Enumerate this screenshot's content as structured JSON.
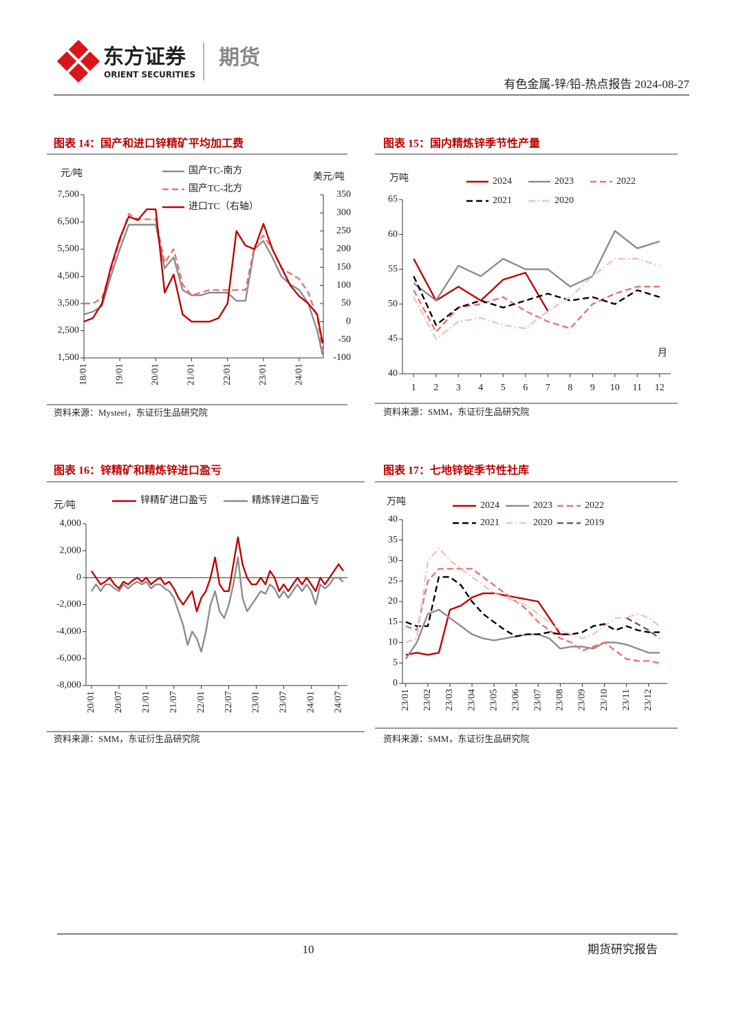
{
  "header": {
    "brand_cn": "东方证券",
    "brand_en": "ORIENT SECURITIES",
    "division": "期货",
    "report": "有色金属-锌/铅-热点报告 2024-08-27"
  },
  "footer": {
    "page": "10",
    "label": "期货研究报告"
  },
  "chart_data": [
    {
      "type": "line",
      "title": "图表 14：国产和进口锌精矿平均加工费",
      "source": "资料来源：Mysteel，东证衍生品研究院",
      "y_unit": "元/吨",
      "y2_unit": "美元/吨",
      "x": [
        2018.0,
        2018.25,
        2018.5,
        2018.75,
        2019.0,
        2019.25,
        2019.5,
        2019.75,
        2020.0,
        2020.25,
        2020.5,
        2020.75,
        2021.0,
        2021.25,
        2021.5,
        2021.75,
        2022.0,
        2022.25,
        2022.5,
        2022.75,
        2023.0,
        2023.25,
        2023.5,
        2023.75,
        2024.0,
        2024.25,
        2024.5,
        2024.65
      ],
      "xlim": [
        2018,
        2024.67
      ],
      "xticks": [
        {
          "value": 2018,
          "label": "18/01"
        },
        {
          "value": 2019,
          "label": "19/01"
        },
        {
          "value": 2020,
          "label": "20/01"
        },
        {
          "value": 2021,
          "label": "21/01"
        },
        {
          "value": 2022,
          "label": "22/01"
        },
        {
          "value": 2023,
          "label": "23/01"
        },
        {
          "value": 2024,
          "label": "24/01"
        }
      ],
      "ylim": [
        1500,
        7500
      ],
      "yticks": [
        {
          "value": 1500,
          "label": "1,500"
        },
        {
          "value": 2500,
          "label": "2,500"
        },
        {
          "value": 3500,
          "label": "3,500"
        },
        {
          "value": 4500,
          "label": "4,500"
        },
        {
          "value": 5500,
          "label": "5,500"
        },
        {
          "value": 6500,
          "label": "6,500"
        },
        {
          "value": 7500,
          "label": "7,500"
        }
      ],
      "y2lim": [
        -100,
        350
      ],
      "y2ticks": [
        -100,
        -50,
        0,
        50,
        100,
        150,
        200,
        250,
        300,
        350
      ],
      "series": [
        {
          "name": "国产TC-南方",
          "color": "#8c8c8c",
          "dash": "solid",
          "values": [
            3100,
            3200,
            3400,
            4500,
            5500,
            6400,
            6400,
            6400,
            6400,
            4800,
            5200,
            4000,
            3800,
            3800,
            3900,
            3900,
            3900,
            3600,
            3600,
            5500,
            5800,
            5200,
            4500,
            4200,
            4000,
            3500,
            2500,
            1600
          ]
        },
        {
          "name": "国产TC-北方",
          "color": "#f07070",
          "dash": "dashed",
          "values": [
            3500,
            3500,
            3700,
            4700,
            5800,
            6800,
            6600,
            6600,
            6600,
            5000,
            5500,
            4200,
            3800,
            3900,
            4000,
            4000,
            4000,
            4000,
            4000,
            5600,
            6000,
            5500,
            4800,
            4600,
            4400,
            3900,
            3000,
            1800
          ]
        },
        {
          "name": "进口TC（右轴）",
          "color": "#c00000",
          "dash": "solid",
          "axis": "y2",
          "values": [
            0,
            10,
            50,
            150,
            230,
            290,
            280,
            310,
            310,
            80,
            130,
            20,
            0,
            0,
            0,
            10,
            50,
            250,
            210,
            200,
            270,
            200,
            150,
            100,
            70,
            50,
            20,
            -60
          ]
        }
      ]
    },
    {
      "type": "line",
      "title": "图表 15：国内精炼锌季节性产量",
      "source": "资料来源：SMM，东证衍生品研究院",
      "y_unit": "万吨",
      "x_label": "月",
      "categories": [
        1,
        2,
        3,
        4,
        5,
        6,
        7,
        8,
        9,
        10,
        11,
        12
      ],
      "ylim": [
        40,
        65
      ],
      "yticks": [
        40,
        45,
        50,
        55,
        60,
        65
      ],
      "series": [
        {
          "name": "2024",
          "color": "#c00000",
          "dash": "solid",
          "values": [
            56.5,
            50.5,
            52.5,
            50.5,
            53.5,
            54.5,
            49,
            null,
            null,
            null,
            null,
            null
          ]
        },
        {
          "name": "2023",
          "color": "#8c8c8c",
          "dash": "solid",
          "values": [
            53,
            50.5,
            55.5,
            54,
            56.5,
            55,
            55,
            52.5,
            54,
            60.5,
            58,
            59
          ]
        },
        {
          "name": "2022",
          "color": "#f07070",
          "dash": "dashed",
          "values": [
            52,
            46,
            49.5,
            50,
            51,
            49,
            47.5,
            46.5,
            50,
            51.5,
            52.5,
            52.5
          ]
        },
        {
          "name": "2021",
          "color": "#000000",
          "dash": "dashed",
          "values": [
            54,
            47,
            49.5,
            50.5,
            49.5,
            50.5,
            51.5,
            50.5,
            51,
            50,
            52,
            51
          ]
        },
        {
          "name": "2020",
          "color": "#f5c0c0",
          "dash": "dashdot",
          "values": [
            51,
            45,
            47.5,
            48,
            47,
            46.5,
            49,
            51,
            54,
            56.5,
            56.5,
            55.5
          ]
        }
      ]
    },
    {
      "type": "line",
      "title": "图表 16：锌精矿和精炼锌进口盈亏",
      "source": "资料来源：SMM，东证衍生品研究院",
      "y_unit": "元/吨",
      "x": [
        2020.0,
        2020.083,
        2020.167,
        2020.25,
        2020.333,
        2020.417,
        2020.5,
        2020.583,
        2020.667,
        2020.75,
        2020.833,
        2020.917,
        2021.0,
        2021.083,
        2021.167,
        2021.25,
        2021.333,
        2021.417,
        2021.5,
        2021.583,
        2021.667,
        2021.75,
        2021.833,
        2021.917,
        2022.0,
        2022.083,
        2022.167,
        2022.25,
        2022.333,
        2022.417,
        2022.5,
        2022.583,
        2022.667,
        2022.75,
        2022.833,
        2022.917,
        2023.0,
        2023.083,
        2023.167,
        2023.25,
        2023.333,
        2023.417,
        2023.5,
        2023.583,
        2023.667,
        2023.75,
        2023.833,
        2023.917,
        2024.0,
        2024.083,
        2024.167,
        2024.25,
        2024.333,
        2024.417,
        2024.5,
        2024.583
      ],
      "xlim": [
        2019.9,
        2024.66
      ],
      "xticks": [
        {
          "value": 2020,
          "label": "20/01"
        },
        {
          "value": 2020.5,
          "label": "20/07"
        },
        {
          "value": 2021,
          "label": "21/01"
        },
        {
          "value": 2021.5,
          "label": "21/07"
        },
        {
          "value": 2022,
          "label": "22/01"
        },
        {
          "value": 2022.5,
          "label": "22/07"
        },
        {
          "value": 2023,
          "label": "23/01"
        },
        {
          "value": 2023.5,
          "label": "23/07"
        },
        {
          "value": 2024,
          "label": "24/01"
        },
        {
          "value": 2024.5,
          "label": "24/07"
        }
      ],
      "ylim": [
        -8000,
        4000
      ],
      "yticks": [
        {
          "value": -8000,
          "label": "-8,000"
        },
        {
          "value": -6000,
          "label": "-6,000"
        },
        {
          "value": -4000,
          "label": "-4,000"
        },
        {
          "value": -2000,
          "label": "-2,000"
        },
        0,
        {
          "value": 2000,
          "label": "2,000"
        },
        {
          "value": 4000,
          "label": "4,000"
        }
      ],
      "series": [
        {
          "name": "锌精矿进口盈亏",
          "color": "#c00000",
          "dash": "solid",
          "values": [
            500,
            0,
            -500,
            -300,
            0,
            -500,
            -800,
            -300,
            -500,
            -200,
            0,
            -300,
            0,
            -500,
            -200,
            0,
            -500,
            -300,
            -800,
            -1500,
            -2000,
            -1500,
            -1000,
            -2500,
            -1500,
            -1000,
            0,
            1500,
            -500,
            -1000,
            -1000,
            1000,
            3000,
            1000,
            0,
            -500,
            -500,
            0,
            -500,
            500,
            0,
            -1000,
            -500,
            -1000,
            -500,
            0,
            -500,
            0,
            -500,
            -1000,
            0,
            -500,
            0,
            500,
            1000,
            500
          ]
        },
        {
          "name": "精炼锌进口盈亏",
          "color": "#8c8c8c",
          "dash": "solid",
          "values": [
            -1000,
            -500,
            -1000,
            -500,
            -500,
            -800,
            -1000,
            -500,
            -800,
            -500,
            -300,
            -500,
            -300,
            -800,
            -500,
            -500,
            -800,
            -1000,
            -1500,
            -2500,
            -3500,
            -5000,
            -4000,
            -4500,
            -5500,
            -4000,
            -2000,
            -1000,
            -2500,
            -3000,
            -2000,
            -500,
            1500,
            -1500,
            -2500,
            -2000,
            -1500,
            -1000,
            -1200,
            -500,
            -800,
            -1500,
            -1000,
            -1500,
            -1000,
            -500,
            -1000,
            -500,
            -1000,
            -2000,
            -500,
            -800,
            -500,
            0,
            0,
            -300
          ]
        }
      ]
    },
    {
      "type": "line",
      "title": "图表 17：七地锌锭季节性社库",
      "source": "资料来源：SMM，东证衍生品研究院",
      "y_unit": "万吨",
      "x": [
        0,
        0.5,
        1,
        1.5,
        2,
        2.5,
        3,
        3.5,
        4,
        4.5,
        5,
        5.5,
        6,
        6.5,
        7,
        7.5,
        8,
        8.5,
        9,
        9.5,
        10,
        10.5,
        11,
        11.5
      ],
      "xlim": [
        -0.15,
        11.85
      ],
      "xticks": [
        {
          "value": 0,
          "label": "23/01"
        },
        {
          "value": 1,
          "label": "23/02"
        },
        {
          "value": 2,
          "label": "23/03"
        },
        {
          "value": 3,
          "label": "23/04"
        },
        {
          "value": 4,
          "label": "23/05"
        },
        {
          "value": 5,
          "label": "23/06"
        },
        {
          "value": 6,
          "label": "23/07"
        },
        {
          "value": 7,
          "label": "23/08"
        },
        {
          "value": 8,
          "label": "23/09"
        },
        {
          "value": 9,
          "label": "23/10"
        },
        {
          "value": 10,
          "label": "23/11"
        },
        {
          "value": 11,
          "label": "23/12"
        }
      ],
      "ylim": [
        0,
        40
      ],
      "yticks": [
        0,
        5,
        10,
        15,
        20,
        25,
        30,
        35,
        40
      ],
      "series": [
        {
          "name": "2024",
          "color": "#c00000",
          "dash": "solid",
          "values": [
            7,
            7.5,
            7,
            7.5,
            18,
            19,
            21,
            22,
            22,
            21.5,
            21,
            20.5,
            20,
            16,
            12,
            12,
            null,
            null,
            null,
            null,
            null,
            null,
            null,
            null
          ]
        },
        {
          "name": "2023",
          "color": "#8c8c8c",
          "dash": "solid",
          "values": [
            6,
            10,
            17,
            18,
            16,
            14,
            12,
            11,
            10.5,
            11,
            11.5,
            12,
            12,
            11,
            8.5,
            9,
            9,
            8.5,
            10,
            10,
            9.5,
            8.5,
            7.5,
            7.5
          ]
        },
        {
          "name": "2022",
          "color": "#f07070",
          "dash": "dashed",
          "values": [
            14,
            13,
            25,
            28,
            28,
            28,
            28,
            26,
            24,
            22,
            20,
            18,
            15,
            13,
            11,
            10,
            8,
            9,
            10,
            8,
            6,
            5.5,
            5.5,
            5
          ]
        },
        {
          "name": "2021",
          "color": "#000000",
          "dash": "dashed",
          "values": [
            15,
            14,
            14,
            26,
            26,
            24,
            20,
            17,
            15,
            13,
            11.5,
            12,
            12,
            12.5,
            12,
            12,
            12.5,
            14,
            14.5,
            13,
            14,
            13,
            12.5,
            12.5
          ]
        },
        {
          "name": "2020",
          "color": "#f5c0c0",
          "dash": "dashdot",
          "values": [
            10,
            11,
            30,
            33,
            30,
            28,
            26,
            24,
            22,
            21,
            20,
            19,
            17,
            15,
            13,
            12,
            11,
            12,
            14,
            16,
            16,
            17,
            16,
            14
          ]
        },
        {
          "name": "2019",
          "color": "#606060",
          "dash": "dashed",
          "values": [
            null,
            null,
            null,
            null,
            null,
            null,
            null,
            null,
            null,
            null,
            null,
            null,
            null,
            null,
            null,
            null,
            null,
            null,
            null,
            null,
            16,
            14.5,
            13,
            11
          ]
        }
      ]
    }
  ]
}
